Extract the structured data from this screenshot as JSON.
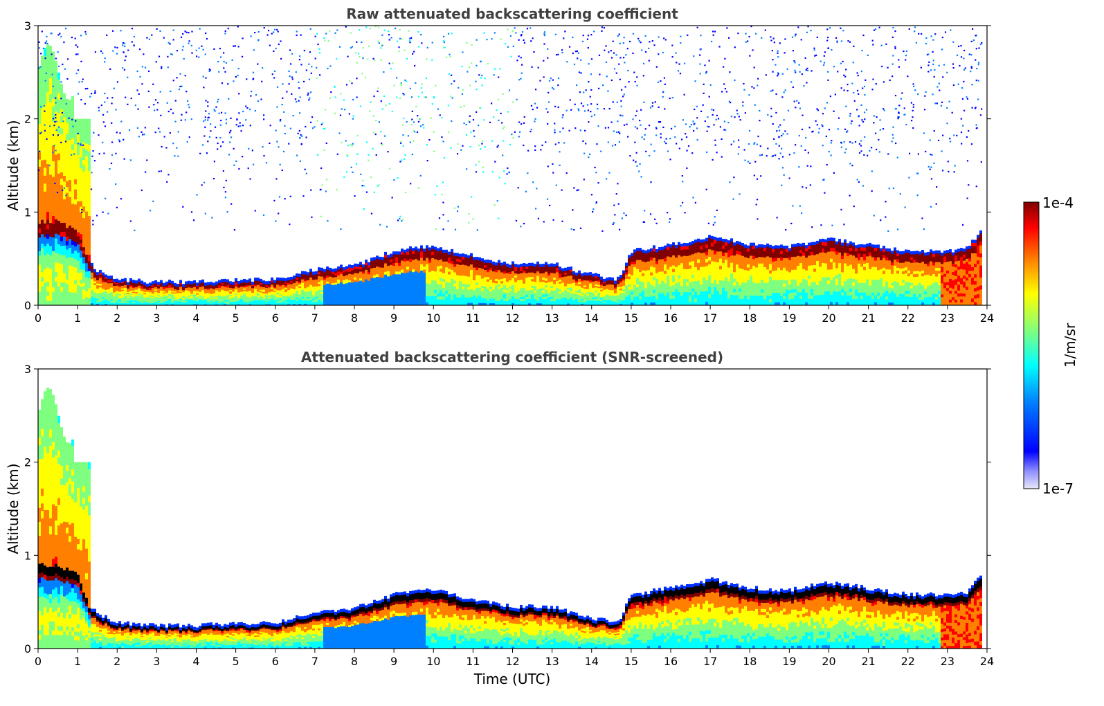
{
  "chart_data": [
    {
      "type": "heatmap",
      "title": "Raw attenuated backscattering coefficient",
      "xlabel": "",
      "ylabel": "Altitude (km)",
      "xlim": [
        0,
        24
      ],
      "ylim": [
        0,
        3
      ],
      "xticks": [
        "0",
        "1",
        "2",
        "3",
        "4",
        "5",
        "6",
        "7",
        "8",
        "9",
        "10",
        "11",
        "12",
        "13",
        "14",
        "15",
        "16",
        "17",
        "18",
        "19",
        "20",
        "21",
        "22",
        "23",
        "24"
      ],
      "yticks": [
        "0",
        "1",
        "2",
        "3"
      ],
      "boundary_layer_top_km": {
        "x": [
          0,
          0.5,
          1.0,
          1.3,
          1.5,
          2,
          3,
          4,
          5,
          6,
          6.5,
          7,
          8,
          9,
          9.5,
          10,
          11,
          12,
          13,
          14,
          14.7,
          15,
          16,
          16.6,
          17,
          18,
          19,
          20,
          21,
          22,
          23,
          23.5,
          23.8
        ],
        "y": [
          0.9,
          0.9,
          0.8,
          0.45,
          0.35,
          0.25,
          0.22,
          0.22,
          0.24,
          0.25,
          0.3,
          0.35,
          0.4,
          0.55,
          0.6,
          0.6,
          0.5,
          0.42,
          0.42,
          0.3,
          0.25,
          0.55,
          0.62,
          0.65,
          0.72,
          0.62,
          0.6,
          0.68,
          0.62,
          0.55,
          0.55,
          0.58,
          0.75
        ]
      },
      "colorbar": {
        "min_label": "1e-7",
        "max_label": "1e-4",
        "label": "1/m/sr",
        "scale": "log"
      }
    },
    {
      "type": "heatmap",
      "title": "Attenuated backscattering coefficient (SNR-screened)",
      "xlabel": "Time (UTC)",
      "ylabel": "Altitude (km)",
      "xlim": [
        0,
        24
      ],
      "ylim": [
        0,
        3
      ],
      "xticks": [
        "0",
        "1",
        "2",
        "3",
        "4",
        "5",
        "6",
        "7",
        "8",
        "9",
        "10",
        "11",
        "12",
        "13",
        "14",
        "15",
        "16",
        "17",
        "18",
        "19",
        "20",
        "21",
        "22",
        "23",
        "24"
      ],
      "yticks": [
        "0",
        "1",
        "2",
        "3"
      ],
      "boundary_layer_top_km": {
        "x": [
          0,
          0.5,
          1.0,
          1.3,
          1.5,
          2,
          3,
          4,
          5,
          6,
          6.5,
          7,
          8,
          9,
          9.5,
          10,
          11,
          12,
          13,
          14,
          14.7,
          15,
          16,
          16.6,
          17,
          18,
          19,
          20,
          21,
          22,
          23,
          23.5,
          23.8
        ],
        "y": [
          0.9,
          0.9,
          0.8,
          0.45,
          0.35,
          0.25,
          0.22,
          0.22,
          0.24,
          0.25,
          0.3,
          0.35,
          0.4,
          0.55,
          0.6,
          0.6,
          0.5,
          0.42,
          0.42,
          0.3,
          0.25,
          0.55,
          0.62,
          0.65,
          0.72,
          0.62,
          0.6,
          0.68,
          0.62,
          0.55,
          0.55,
          0.58,
          0.75
        ]
      },
      "colorbar": {
        "min_label": "1e-7",
        "max_label": "1e-4",
        "label": "1/m/sr",
        "scale": "log"
      }
    }
  ],
  "colormap": [
    "#00007f",
    "#0000ff",
    "#007fff",
    "#00ffff",
    "#7fff7f",
    "#ffff00",
    "#ff7f00",
    "#ff0000",
    "#7f0000"
  ]
}
